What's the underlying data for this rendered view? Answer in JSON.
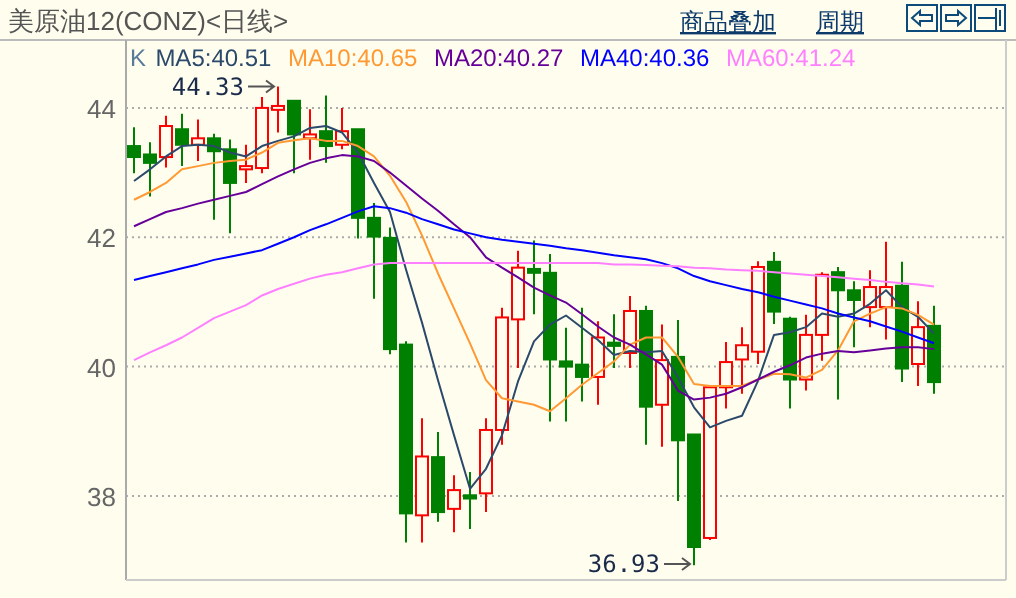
{
  "chart_data": {
    "type": "candlestick",
    "title": "美原油12(CONZ)<日线>",
    "categories": [
      null,
      null,
      null,
      null,
      null,
      null,
      null,
      null,
      null,
      null,
      null,
      null,
      null,
      null,
      null,
      null,
      null,
      null,
      null,
      null,
      null,
      null,
      null,
      null,
      null,
      null,
      null,
      null,
      null,
      null,
      null,
      null,
      null,
      null,
      null,
      null,
      null,
      null,
      null,
      null,
      null,
      null,
      null,
      null,
      null,
      null,
      null,
      null,
      null,
      null,
      null
    ],
    "ylim": [
      36.7,
      45.05
    ],
    "yticks": [
      38,
      40,
      42,
      44
    ],
    "grid": "y",
    "tick_labels": "y",
    "legend": "top left",
    "annotations": [
      "44.33",
      "36.93",
      "商品叠加",
      "周期"
    ],
    "series": [
      {
        "name": "K",
        "color": "#5a7a9a",
        "ohlc": [
          [
            43.41,
            43.7,
            42.99,
            43.24
          ],
          [
            43.28,
            43.47,
            42.63,
            43.15
          ],
          [
            43.24,
            43.88,
            43.08,
            43.72
          ],
          [
            43.67,
            43.91,
            43.1,
            43.43
          ],
          [
            43.43,
            43.82,
            43.18,
            43.53
          ],
          [
            43.53,
            43.6,
            42.27,
            43.33
          ],
          [
            43.36,
            43.51,
            42.06,
            42.84
          ],
          [
            43.05,
            43.43,
            42.84,
            43.1
          ],
          [
            43.07,
            44.17,
            42.99,
            44.0
          ],
          [
            43.97,
            44.33,
            43.62,
            44.03
          ],
          [
            44.11,
            44.11,
            42.99,
            43.59
          ],
          [
            43.53,
            43.98,
            43.2,
            43.59
          ],
          [
            43.64,
            44.19,
            43.15,
            43.41
          ],
          [
            43.43,
            44.0,
            43.36,
            43.64
          ],
          [
            43.67,
            43.67,
            41.98,
            42.3
          ],
          [
            42.3,
            42.53,
            41.05,
            42.01
          ],
          [
            41.99,
            42.15,
            40.19,
            40.27
          ],
          [
            40.34,
            40.39,
            37.28,
            37.73
          ],
          [
            37.7,
            39.2,
            37.28,
            38.61
          ],
          [
            38.6,
            38.99,
            37.6,
            37.75
          ],
          [
            37.8,
            38.32,
            37.44,
            38.09
          ],
          [
            38.01,
            38.37,
            37.49,
            37.96
          ],
          [
            38.04,
            39.2,
            37.75,
            39.02
          ],
          [
            39.02,
            40.91,
            38.79,
            40.76
          ],
          [
            40.73,
            41.79,
            39.98,
            41.53
          ],
          [
            41.51,
            41.95,
            40.81,
            41.45
          ],
          [
            41.45,
            41.74,
            39.15,
            40.11
          ],
          [
            40.08,
            40.6,
            39.15,
            40.0
          ],
          [
            40.03,
            40.91,
            39.46,
            39.84
          ],
          [
            39.84,
            40.7,
            39.41,
            40.45
          ],
          [
            40.37,
            40.81,
            39.98,
            40.32
          ],
          [
            40.21,
            41.09,
            39.98,
            40.86
          ],
          [
            40.86,
            40.94,
            38.79,
            39.38
          ],
          [
            39.41,
            40.65,
            38.76,
            40.1
          ],
          [
            40.15,
            40.72,
            37.92,
            38.86
          ],
          [
            38.95,
            38.95,
            36.93,
            37.21
          ],
          [
            37.35,
            39.7,
            37.32,
            39.68
          ],
          [
            39.68,
            40.38,
            39.35,
            40.07
          ],
          [
            40.11,
            40.61,
            39.58,
            40.33
          ],
          [
            40.23,
            41.63,
            40.04,
            41.54
          ],
          [
            41.62,
            41.77,
            40.66,
            40.85
          ],
          [
            40.74,
            40.77,
            39.35,
            39.8
          ],
          [
            39.8,
            40.8,
            39.63,
            40.49
          ],
          [
            40.49,
            41.46,
            40.09,
            41.42
          ],
          [
            41.46,
            41.54,
            39.49,
            41.18
          ],
          [
            41.18,
            41.32,
            40.3,
            41.03
          ],
          [
            40.92,
            41.49,
            40.61,
            41.23
          ],
          [
            40.92,
            41.93,
            40.42,
            41.23
          ],
          [
            41.25,
            41.62,
            39.76,
            39.97
          ],
          [
            40.04,
            41.01,
            39.7,
            40.61
          ],
          [
            40.63,
            40.94,
            39.58,
            39.76
          ]
        ],
        "colors": [
          "#008000",
          "#008000",
          "#ff0000",
          "#008000",
          "#ff0000",
          "#008000",
          "#008000",
          "#ff0000",
          "#ff0000",
          "#ff0000",
          "#008000",
          "#ff0000",
          "#008000",
          "#ff0000",
          "#008000",
          "#008000",
          "#008000",
          "#008000",
          "#ff0000",
          "#008000",
          "#ff0000",
          "#008000",
          "#ff0000",
          "#ff0000",
          "#ff0000",
          "#008000",
          "#008000",
          "#008000",
          "#008000",
          "#ff0000",
          "#008000",
          "#ff0000",
          "#008000",
          "#ff0000",
          "#008000",
          "#008000",
          "#ff0000",
          "#ff0000",
          "#ff0000",
          "#ff0000",
          "#008000",
          "#008000",
          "#ff0000",
          "#ff0000",
          "#008000",
          "#008000",
          "#ff0000",
          "#ff0000",
          "#008000",
          "#ff0000",
          "#008000"
        ]
      },
      {
        "type": "line",
        "name": "MA5:40.51",
        "color": "#2b4a6b",
        "values": [
          42.87,
          43.05,
          43.25,
          43.41,
          43.43,
          43.41,
          43.31,
          43.25,
          43.41,
          43.49,
          43.56,
          43.69,
          43.72,
          43.62,
          43.31,
          42.84,
          42.39,
          41.5,
          40.68,
          39.79,
          38.94,
          38.11,
          38.42,
          38.94,
          39.77,
          40.39,
          40.65,
          40.79,
          40.6,
          40.41,
          40.18,
          40.24,
          40.22,
          40.24,
          39.83,
          39.37,
          39.06,
          39.16,
          39.24,
          39.78,
          40.49,
          40.53,
          40.61,
          40.82,
          40.77,
          40.82,
          40.97,
          41.18,
          40.92,
          40.77,
          40.51
        ]
      },
      {
        "type": "line",
        "name": "MA10:40.65",
        "color": "#ff9933",
        "values": [
          42.58,
          42.7,
          42.84,
          43.05,
          43.1,
          43.15,
          43.18,
          43.2,
          43.31,
          43.46,
          43.5,
          43.53,
          43.49,
          43.49,
          43.41,
          43.25,
          42.95,
          42.55,
          42.03,
          41.44,
          40.9,
          40.36,
          39.79,
          39.51,
          39.46,
          39.41,
          39.31,
          39.51,
          39.72,
          39.9,
          40.08,
          40.34,
          40.45,
          40.45,
          40.15,
          39.73,
          39.7,
          39.7,
          39.7,
          39.8,
          39.89,
          39.88,
          39.83,
          39.95,
          40.25,
          40.7,
          40.82,
          40.92,
          40.9,
          40.8,
          40.65
        ]
      },
      {
        "type": "line",
        "name": "MA20:40.27",
        "color": "#660099",
        "values": [
          42.17,
          42.28,
          42.39,
          42.45,
          42.52,
          42.58,
          42.64,
          42.7,
          42.82,
          42.94,
          43.05,
          43.15,
          43.22,
          43.27,
          43.25,
          43.18,
          43.0,
          42.8,
          42.6,
          42.41,
          42.2,
          42.0,
          41.69,
          41.53,
          41.38,
          41.22,
          41.1,
          40.99,
          40.81,
          40.62,
          40.45,
          40.34,
          40.19,
          40.03,
          39.63,
          39.49,
          39.52,
          39.58,
          39.68,
          39.8,
          39.92,
          40.02,
          40.14,
          40.2,
          40.24,
          40.22,
          40.25,
          40.28,
          40.3,
          40.3,
          40.27
        ]
      },
      {
        "type": "line",
        "name": "MA40:40.36",
        "color": "#0000ff",
        "values": [
          41.34,
          41.4,
          41.46,
          41.52,
          41.58,
          41.65,
          41.7,
          41.75,
          41.8,
          41.9,
          42.0,
          42.11,
          42.2,
          42.3,
          42.4,
          42.48,
          42.45,
          42.38,
          42.28,
          42.2,
          42.12,
          42.06,
          42.0,
          41.96,
          41.93,
          41.9,
          41.87,
          41.83,
          41.8,
          41.76,
          41.72,
          41.69,
          41.66,
          41.6,
          41.52,
          41.4,
          41.32,
          41.26,
          41.2,
          41.15,
          41.08,
          41.02,
          40.96,
          40.9,
          40.82,
          40.76,
          40.7,
          40.62,
          40.54,
          40.45,
          40.36
        ]
      },
      {
        "type": "line",
        "name": "MA60:41.24",
        "color": "#ff80ff",
        "values": [
          40.1,
          40.22,
          40.33,
          40.45,
          40.6,
          40.75,
          40.85,
          40.95,
          41.1,
          41.2,
          41.28,
          41.36,
          41.42,
          41.46,
          41.52,
          41.58,
          41.6,
          41.6,
          41.6,
          41.6,
          41.6,
          41.6,
          41.6,
          41.6,
          41.6,
          41.6,
          41.6,
          41.6,
          41.6,
          41.6,
          41.58,
          41.58,
          41.57,
          41.56,
          41.55,
          41.53,
          41.52,
          41.5,
          41.49,
          41.48,
          41.46,
          41.44,
          41.42,
          41.4,
          41.38,
          41.36,
          41.34,
          41.31,
          41.29,
          41.27,
          41.24
        ]
      }
    ]
  }
}
